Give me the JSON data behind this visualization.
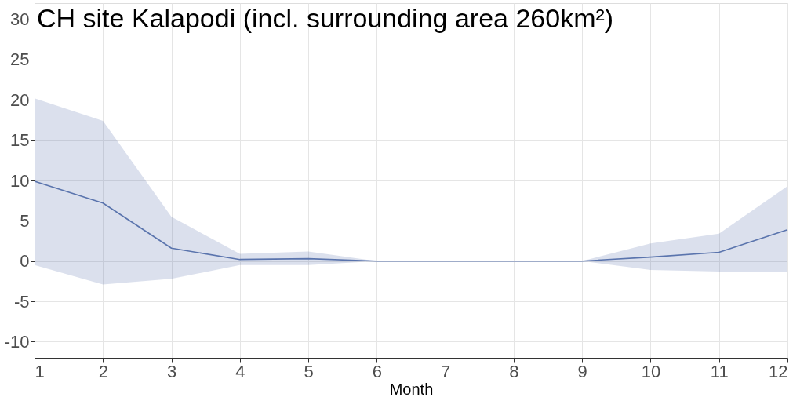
{
  "chart_data": {
    "type": "line",
    "title": "CH site Kalapodi (incl. surrounding area 260km²)",
    "xlabel": "Month",
    "x": [
      1,
      2,
      3,
      4,
      5,
      6,
      7,
      8,
      9,
      10,
      11,
      12
    ],
    "series": [
      {
        "color": "#5a74ad",
        "values": [
          9.9,
          7.2,
          1.6,
          0.2,
          0.3,
          0,
          0,
          0,
          0,
          0.5,
          1.1,
          3.9
        ],
        "lower": [
          -0.5,
          -2.9,
          -2.2,
          -0.5,
          -0.5,
          0,
          0,
          0,
          0,
          -1.1,
          -1.3,
          -1.4
        ],
        "upper": [
          20.2,
          17.4,
          5.5,
          0.9,
          1.2,
          0,
          0,
          0,
          0,
          2.2,
          3.4,
          9.3
        ]
      }
    ],
    "xlim": [
      1,
      12
    ],
    "xticks": [
      1,
      2,
      3,
      4,
      5,
      6,
      7,
      8,
      9,
      10,
      11,
      12
    ],
    "ylim": [
      -12,
      32
    ],
    "yticks": [
      -10,
      -5,
      0,
      5,
      10,
      15,
      20,
      25,
      30
    ],
    "grid": true
  }
}
